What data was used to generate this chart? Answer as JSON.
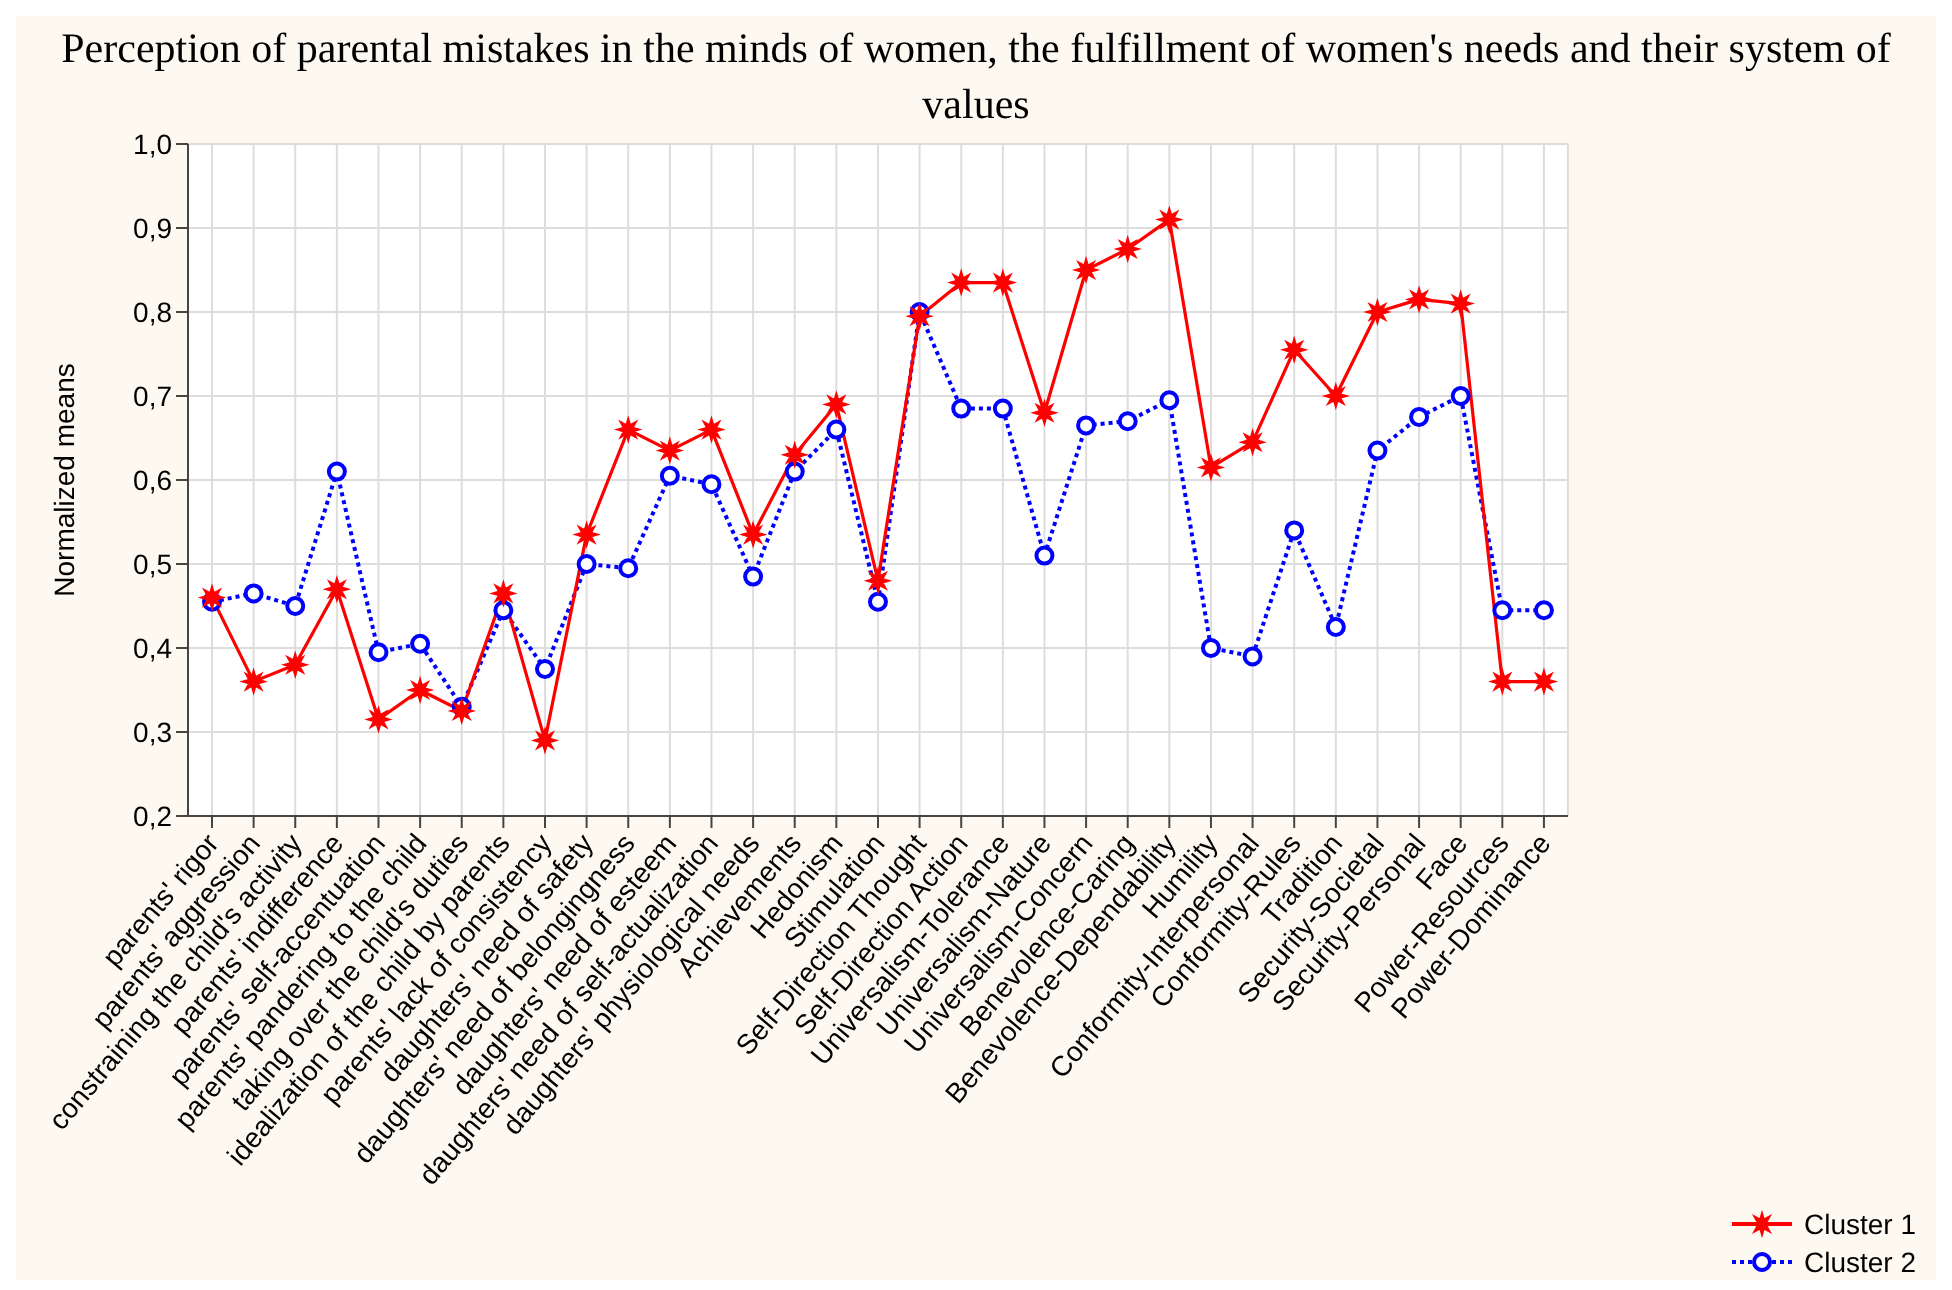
{
  "chart_data": {
    "type": "line",
    "title": "Perception of parental mistakes in the minds of women, the fulfillment of women's needs and their system of values",
    "ylabel": "Normalized means",
    "categories": [
      "parents' rigor",
      "parents' aggression",
      "constraining the child's activity",
      "parents' indifference",
      "parents' self-accentuation",
      "parents' pandering to the child",
      "taking over the child's duties",
      "idealization of the child by parents",
      "parents' lack of consistency",
      "daughters' need of safety",
      "daughters' need of belongingness",
      "daughters' need of esteem",
      "daughters' need of self-actualization",
      "daughters' physiological needs",
      "Achievements",
      "Hedonism",
      "Stimulation",
      "Self-Direction Thought",
      "Self-Direction Action",
      "Universalism-Tolerance",
      "Universalism-Nature",
      "Universalism-Concern",
      "Benevolence-Caring",
      "Benevolence-Dependability",
      "Humility",
      "Conformity-Interpersonal",
      "Conformity-Rules",
      "Tradition",
      "Security-Societal",
      "Security-Personal",
      "Face",
      "Power-Resources",
      "Power-Dominance"
    ],
    "series": [
      {
        "name": "Cluster 1",
        "color": "#ff0000",
        "marker": "star",
        "line_style": "solid",
        "values": [
          0.46,
          0.36,
          0.38,
          0.47,
          0.315,
          0.35,
          0.325,
          0.465,
          0.29,
          0.535,
          0.66,
          0.635,
          0.66,
          0.535,
          0.63,
          0.69,
          0.48,
          0.795,
          0.835,
          0.835,
          0.68,
          0.85,
          0.875,
          0.91,
          0.615,
          0.645,
          0.755,
          0.7,
          0.8,
          0.815,
          0.81,
          0.36,
          0.36
        ]
      },
      {
        "name": "Cluster 2",
        "color": "#0000ff",
        "marker": "circle",
        "line_style": "dotted",
        "values": [
          0.455,
          0.465,
          0.45,
          0.61,
          0.395,
          0.405,
          0.33,
          0.445,
          0.375,
          0.5,
          0.495,
          0.605,
          0.595,
          0.485,
          0.61,
          0.66,
          0.455,
          0.8,
          0.685,
          0.685,
          0.51,
          0.665,
          0.67,
          0.695,
          0.4,
          0.39,
          0.54,
          0.425,
          0.635,
          0.675,
          0.7,
          0.445,
          0.445
        ]
      }
    ],
    "ylim": [
      0.2,
      1.0
    ],
    "yticks": [
      {
        "value": 0.2,
        "label": "0,2"
      },
      {
        "value": 0.3,
        "label": "0,3"
      },
      {
        "value": 0.4,
        "label": "0,4"
      },
      {
        "value": 0.5,
        "label": "0,5"
      },
      {
        "value": 0.6,
        "label": "0,6"
      },
      {
        "value": 0.7,
        "label": "0,7"
      },
      {
        "value": 0.8,
        "label": "0,8"
      },
      {
        "value": 0.9,
        "label": "0,9"
      },
      {
        "value": 1.0,
        "label": "1,0"
      }
    ],
    "grid": true,
    "legend": "bottom right"
  }
}
